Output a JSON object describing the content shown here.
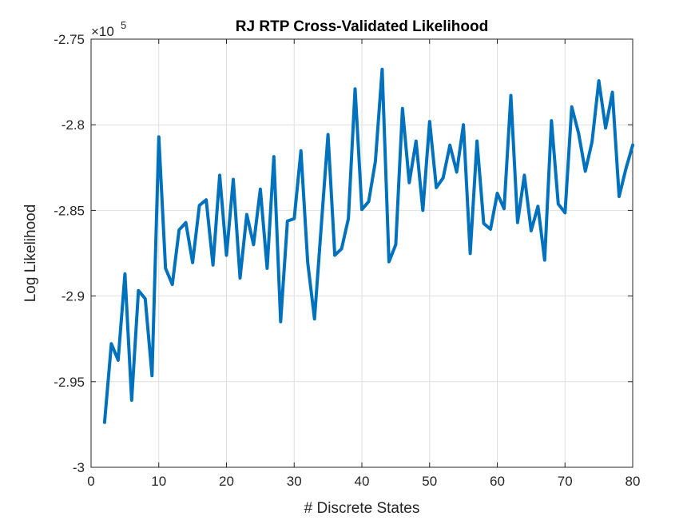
{
  "chart_data": {
    "type": "line",
    "title": "RJ RTP Cross-Validated Likelihood",
    "xlabel": "# Discrete States",
    "ylabel": "Log Likelihood",
    "y_exponent_label": {
      "base": "×10",
      "power": "5"
    },
    "xlim": [
      0,
      80
    ],
    "ylim": [
      -3,
      -2.75
    ],
    "x_ticks": [
      0,
      10,
      20,
      30,
      40,
      50,
      60,
      70,
      80
    ],
    "x_tick_labels": [
      "0",
      "10",
      "20",
      "30",
      "40",
      "50",
      "60",
      "70",
      "80"
    ],
    "y_ticks": [
      -3,
      -2.95,
      -2.9,
      -2.85,
      -2.8,
      -2.75
    ],
    "y_tick_labels": [
      "-3",
      "-2.95",
      "-2.9",
      "-2.85",
      "-2.8",
      "-2.75"
    ],
    "grid": true,
    "line_color": "#0072BD",
    "series": [
      {
        "x": [
          2,
          3,
          4,
          5,
          6,
          7,
          8,
          9,
          10,
          11,
          12,
          13,
          14,
          15,
          16,
          17,
          18,
          19,
          20,
          21,
          22,
          23,
          24,
          25,
          26,
          27,
          28,
          29,
          30,
          31,
          32,
          33,
          34,
          35,
          36,
          37,
          38,
          39,
          40,
          41,
          42,
          43,
          44,
          45,
          46,
          47,
          48,
          49,
          50,
          51,
          52,
          53,
          54,
          55,
          56,
          57,
          58,
          59,
          60,
          61,
          62,
          63,
          64,
          65,
          66,
          67,
          68,
          69,
          70,
          71,
          72,
          73,
          74,
          75,
          76,
          77,
          78,
          79,
          80
        ],
        "y": [
          -2.9738,
          -2.9278,
          -2.9375,
          -2.8871,
          -2.9608,
          -2.8968,
          -2.9016,
          -2.9465,
          -2.8071,
          -2.8838,
          -2.8933,
          -2.8614,
          -2.8571,
          -2.8805,
          -2.8471,
          -2.8438,
          -2.8819,
          -2.8295,
          -2.8762,
          -2.8319,
          -2.8895,
          -2.8524,
          -2.87,
          -2.8376,
          -2.8838,
          -2.8186,
          -2.915,
          -2.8562,
          -2.8548,
          -2.8152,
          -2.8805,
          -2.9134,
          -2.8595,
          -2.8057,
          -2.8762,
          -2.8724,
          -2.8548,
          -2.779,
          -2.8495,
          -2.8448,
          -2.8214,
          -2.7676,
          -2.88,
          -2.87,
          -2.7905,
          -2.8338,
          -2.8095,
          -2.85,
          -2.7981,
          -2.8367,
          -2.831,
          -2.8119,
          -2.8276,
          -2.8,
          -2.8752,
          -2.8095,
          -2.8576,
          -2.861,
          -2.84,
          -2.849,
          -2.7829,
          -2.8571,
          -2.8295,
          -2.8619,
          -2.8476,
          -2.879,
          -2.7976,
          -2.8462,
          -2.8514,
          -2.7895,
          -2.8048,
          -2.8271,
          -2.81,
          -2.7743,
          -2.8019,
          -2.781,
          -2.8419,
          -2.8257,
          -2.8119
        ]
      }
    ]
  }
}
